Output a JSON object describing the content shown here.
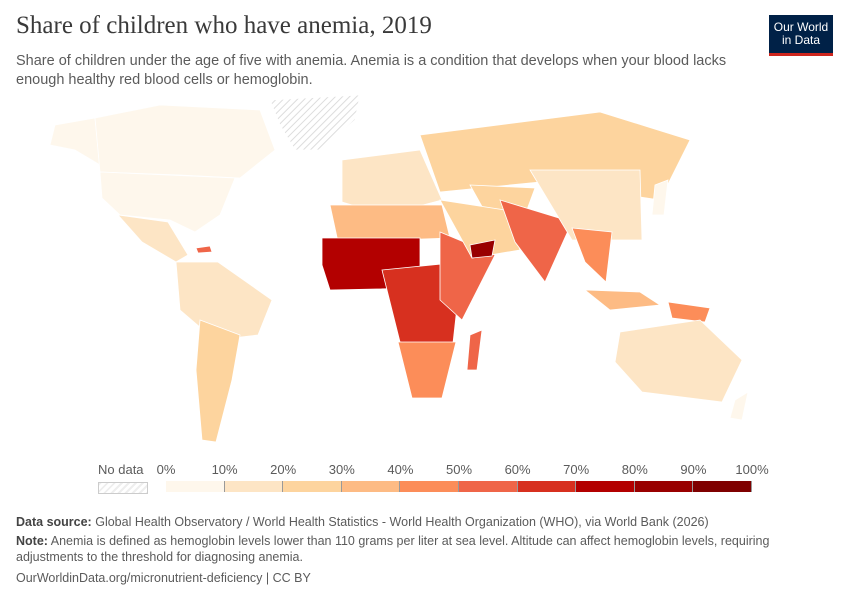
{
  "header": {
    "title": "Share of children who have anemia, 2019",
    "subtitle": "Share of children under the age of five with anemia. Anemia is a condition that develops when your blood lacks enough healthy red blood cells or hemoglobin.",
    "logo": "Our World in Data"
  },
  "legend": {
    "no_data_label": "No data",
    "ticks": [
      "0%",
      "10%",
      "20%",
      "30%",
      "40%",
      "50%",
      "60%",
      "70%",
      "80%",
      "90%",
      "100%"
    ],
    "colors": [
      "#fef7ec",
      "#fde5c5",
      "#fdd49e",
      "#fdbb84",
      "#fc8d59",
      "#ef6548",
      "#d7301f",
      "#b30000",
      "#990000",
      "#7f0000"
    ],
    "no_data_color": "#eeeeee"
  },
  "footer": {
    "source_label": "Data source:",
    "source": "Global Health Observatory / World Health Statistics - World Health Organization (WHO), via World Bank (2026)",
    "note_label": "Note:",
    "note": "Anemia is defined as hemoglobin levels lower than 110 grams per liter at sea level. Altitude can affect hemoglobin levels, requiring adjustments to the threshold for diagnosing anemia.",
    "url": "OurWorldinData.org/micronutrient-deficiency | CC BY"
  }
}
